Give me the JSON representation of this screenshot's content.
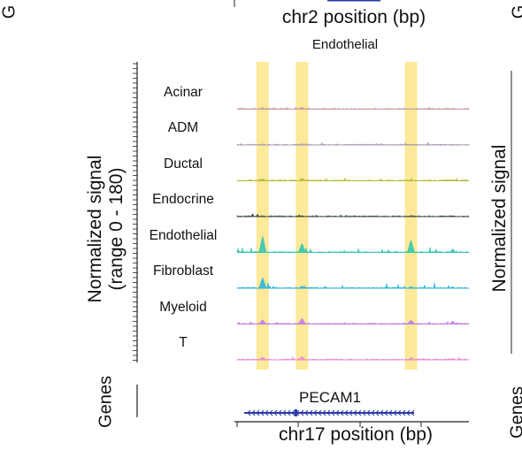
{
  "chart_data": {
    "type": "area",
    "panel_title": "Endothelial",
    "top_xlabel": "chr2 position (bp)",
    "top_left_partial_label": "G",
    "top_right_partial_label": "G",
    "ylabel_line1": "Normalized signal",
    "ylabel_line2": "(range 0 - 180)",
    "yrange": [
      0,
      180
    ],
    "genes_label": "Genes",
    "gene": {
      "name": "PECAM1",
      "strand": "-"
    },
    "xlabel": "chr17 position (bp)",
    "right_panel_ylabel_partial": "Normalized signal",
    "right_panel_genes_partial": "Genes",
    "highlight_color": "#fde99a",
    "highlights": [
      0.11,
      0.28,
      0.75
    ],
    "tracks": [
      {
        "name": "Acinar",
        "color": "#c9a0a0",
        "peaks": [
          0.06,
          0.08,
          0.02,
          0.03
        ]
      },
      {
        "name": "ADM",
        "color": "#b0a0b4",
        "peaks": [
          0.04,
          0.05,
          0.02,
          0.03
        ]
      },
      {
        "name": "Ductal",
        "color": "#b7bd3c",
        "peaks": [
          0.08,
          0.1,
          0.03,
          0.05
        ]
      },
      {
        "name": "Endocrine",
        "color": "#3d4f3d",
        "peaks": [
          0.03,
          0.04,
          0.02,
          0.03
        ]
      },
      {
        "name": "Endothelial",
        "color": "#36c6b0",
        "peaks": [
          0.62,
          0.35,
          0.48,
          0.14
        ]
      },
      {
        "name": "Fibroblast",
        "color": "#2db5d8",
        "peaks": [
          0.4,
          0.08,
          0.06,
          0.06
        ]
      },
      {
        "name": "Myeloid",
        "color": "#c17ee6",
        "peaks": [
          0.16,
          0.22,
          0.15,
          0.12
        ]
      },
      {
        "name": "T",
        "color": "#e68bd6",
        "peaks": [
          0.1,
          0.12,
          0.08,
          0.06
        ]
      }
    ]
  }
}
